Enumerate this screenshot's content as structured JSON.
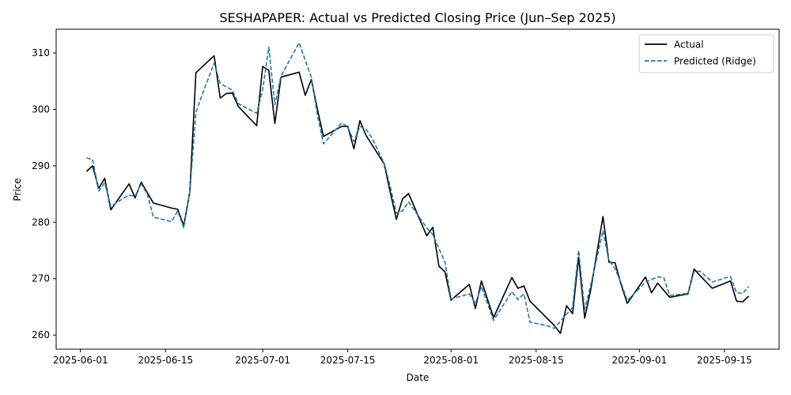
{
  "chart_data": {
    "type": "line",
    "title": "SESHAPAPER: Actual vs Predicted Closing Price (Jun–Sep 2025)",
    "xlabel": "Date",
    "ylabel": "Price",
    "xlim": [
      "2025-05-28",
      "2025-09-24"
    ],
    "ylim": [
      257.5,
      314.2
    ],
    "x_ticks": [
      "2025-06-01",
      "2025-06-15",
      "2025-07-01",
      "2025-07-15",
      "2025-08-01",
      "2025-08-15",
      "2025-09-01",
      "2025-09-15"
    ],
    "y_ticks": [
      260,
      270,
      280,
      290,
      300,
      310
    ],
    "grid": false,
    "legend_position": "top-right",
    "series": [
      {
        "name": "Actual",
        "color": "#000000",
        "dash": "solid",
        "points": [
          [
            "2025-06-02",
            289.0
          ],
          [
            "2025-06-03",
            290.0
          ],
          [
            "2025-06-04",
            286.0
          ],
          [
            "2025-06-05",
            287.8
          ],
          [
            "2025-06-06",
            282.2
          ],
          [
            "2025-06-09",
            286.8
          ],
          [
            "2025-06-10",
            284.3
          ],
          [
            "2025-06-11",
            287.1
          ],
          [
            "2025-06-13",
            283.4
          ],
          [
            "2025-06-16",
            282.5
          ],
          [
            "2025-06-17",
            282.3
          ],
          [
            "2025-06-18",
            279.4
          ],
          [
            "2025-06-19",
            285.4
          ],
          [
            "2025-06-20",
            306.5
          ],
          [
            "2025-06-23",
            309.5
          ],
          [
            "2025-06-24",
            302.0
          ],
          [
            "2025-06-25",
            302.8
          ],
          [
            "2025-06-26",
            302.9
          ],
          [
            "2025-06-27",
            300.5
          ],
          [
            "2025-06-30",
            297.1
          ],
          [
            "2025-07-01",
            307.6
          ],
          [
            "2025-07-02",
            306.9
          ],
          [
            "2025-07-03",
            297.5
          ],
          [
            "2025-07-04",
            305.7
          ],
          [
            "2025-07-07",
            306.6
          ],
          [
            "2025-07-08",
            302.5
          ],
          [
            "2025-07-09",
            305.3
          ],
          [
            "2025-07-10",
            300.0
          ],
          [
            "2025-07-11",
            295.2
          ],
          [
            "2025-07-14",
            297.0
          ],
          [
            "2025-07-15",
            297.0
          ],
          [
            "2025-07-16",
            293.0
          ],
          [
            "2025-07-17",
            298.0
          ],
          [
            "2025-07-18",
            295.4
          ],
          [
            "2025-07-21",
            290.3
          ],
          [
            "2025-07-22",
            285.3
          ],
          [
            "2025-07-23",
            280.5
          ],
          [
            "2025-07-24",
            284.1
          ],
          [
            "2025-07-25",
            285.1
          ],
          [
            "2025-07-28",
            277.6
          ],
          [
            "2025-07-29",
            279.1
          ],
          [
            "2025-07-30",
            272.2
          ],
          [
            "2025-07-31",
            271.2
          ],
          [
            "2025-08-01",
            266.2
          ],
          [
            "2025-08-04",
            269.0
          ],
          [
            "2025-08-05",
            264.7
          ],
          [
            "2025-08-06",
            269.6
          ],
          [
            "2025-08-08",
            263.1
          ],
          [
            "2025-08-11",
            270.2
          ],
          [
            "2025-08-12",
            268.3
          ],
          [
            "2025-08-13",
            268.7
          ],
          [
            "2025-08-14",
            266.0
          ],
          [
            "2025-08-18",
            261.7
          ],
          [
            "2025-08-19",
            260.3
          ],
          [
            "2025-08-20",
            265.2
          ],
          [
            "2025-08-21",
            263.8
          ],
          [
            "2025-08-22",
            273.8
          ],
          [
            "2025-08-23",
            263.0
          ],
          [
            "2025-08-24",
            268.1
          ],
          [
            "2025-08-26",
            281.0
          ],
          [
            "2025-08-27",
            272.9
          ],
          [
            "2025-08-28",
            272.8
          ],
          [
            "2025-08-29",
            268.9
          ],
          [
            "2025-08-30",
            265.6
          ],
          [
            "2025-09-02",
            270.3
          ],
          [
            "2025-09-03",
            267.5
          ],
          [
            "2025-09-04",
            269.2
          ],
          [
            "2025-09-06",
            266.7
          ],
          [
            "2025-09-09",
            267.3
          ],
          [
            "2025-09-10",
            271.7
          ],
          [
            "2025-09-11",
            270.5
          ],
          [
            "2025-09-13",
            268.3
          ],
          [
            "2025-09-16",
            269.6
          ],
          [
            "2025-09-17",
            266.0
          ],
          [
            "2025-09-18",
            265.9
          ],
          [
            "2025-09-19",
            266.9
          ]
        ]
      },
      {
        "name": "Predicted (Ridge)",
        "color": "#1f77b4",
        "dash": "dashed",
        "points": [
          [
            "2025-06-02",
            291.4
          ],
          [
            "2025-06-03",
            291.1
          ],
          [
            "2025-06-04",
            285.5
          ],
          [
            "2025-06-05",
            287.0
          ],
          [
            "2025-06-06",
            282.8
          ],
          [
            "2025-06-08",
            284.2
          ],
          [
            "2025-06-09",
            284.8
          ],
          [
            "2025-06-10",
            284.6
          ],
          [
            "2025-06-11",
            286.8
          ],
          [
            "2025-06-12",
            285.0
          ],
          [
            "2025-06-13",
            280.9
          ],
          [
            "2025-06-16",
            280.1
          ],
          [
            "2025-06-17",
            282.0
          ],
          [
            "2025-06-18",
            279.0
          ],
          [
            "2025-06-19",
            285.4
          ],
          [
            "2025-06-20",
            299.5
          ],
          [
            "2025-06-21",
            302.5
          ],
          [
            "2025-06-23",
            308.2
          ],
          [
            "2025-06-24",
            304.6
          ],
          [
            "2025-06-26",
            303.4
          ],
          [
            "2025-06-27",
            301.0
          ],
          [
            "2025-06-30",
            299.3
          ],
          [
            "2025-07-01",
            303.5
          ],
          [
            "2025-07-02",
            311.0
          ],
          [
            "2025-07-03",
            300.8
          ],
          [
            "2025-07-04",
            305.9
          ],
          [
            "2025-07-07",
            311.8
          ],
          [
            "2025-07-08",
            308.7
          ],
          [
            "2025-07-09",
            305.7
          ],
          [
            "2025-07-10",
            299.0
          ],
          [
            "2025-07-11",
            293.9
          ],
          [
            "2025-07-14",
            297.6
          ],
          [
            "2025-07-15",
            296.9
          ],
          [
            "2025-07-16",
            294.3
          ],
          [
            "2025-07-17",
            297.0
          ],
          [
            "2025-07-18",
            296.5
          ],
          [
            "2025-07-19",
            294.9
          ],
          [
            "2025-07-21",
            290.4
          ],
          [
            "2025-07-22",
            286.3
          ],
          [
            "2025-07-23",
            281.6
          ],
          [
            "2025-07-24",
            282.0
          ],
          [
            "2025-07-25",
            283.6
          ],
          [
            "2025-07-28",
            279.0
          ],
          [
            "2025-07-29",
            277.8
          ],
          [
            "2025-07-31",
            272.9
          ],
          [
            "2025-08-01",
            266.4
          ],
          [
            "2025-08-04",
            267.3
          ],
          [
            "2025-08-05",
            265.6
          ],
          [
            "2025-08-06",
            268.6
          ],
          [
            "2025-08-08",
            262.6
          ],
          [
            "2025-08-11",
            267.7
          ],
          [
            "2025-08-12",
            266.3
          ],
          [
            "2025-08-13",
            267.3
          ],
          [
            "2025-08-14",
            262.3
          ],
          [
            "2025-08-17",
            261.6
          ],
          [
            "2025-08-18",
            261.2
          ],
          [
            "2025-08-20",
            263.7
          ],
          [
            "2025-08-21",
            264.9
          ],
          [
            "2025-08-22",
            275.0
          ],
          [
            "2025-08-23",
            264.5
          ],
          [
            "2025-08-24",
            268.9
          ],
          [
            "2025-08-26",
            278.5
          ],
          [
            "2025-08-27",
            273.2
          ],
          [
            "2025-08-28",
            271.8
          ],
          [
            "2025-08-29",
            269.2
          ],
          [
            "2025-08-30",
            266.1
          ],
          [
            "2025-09-02",
            269.4
          ],
          [
            "2025-09-04",
            270.3
          ],
          [
            "2025-09-05",
            270.2
          ],
          [
            "2025-09-06",
            267.0
          ],
          [
            "2025-09-09",
            267.4
          ],
          [
            "2025-09-10",
            271.3
          ],
          [
            "2025-09-11",
            271.3
          ],
          [
            "2025-09-13",
            269.4
          ],
          [
            "2025-09-16",
            270.4
          ],
          [
            "2025-09-17",
            267.5
          ],
          [
            "2025-09-18",
            267.4
          ],
          [
            "2025-09-19",
            268.6
          ]
        ]
      }
    ]
  }
}
